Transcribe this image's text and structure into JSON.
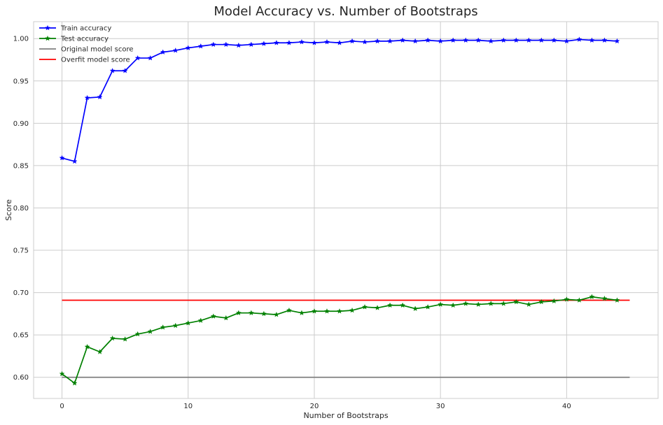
{
  "chart_data": {
    "type": "line",
    "title": "Model Accuracy vs. Number of Bootstraps",
    "xlabel": "Number of Bootstraps",
    "ylabel": "Score",
    "xlim": [
      -2.25,
      47.25
    ],
    "ylim": [
      0.575,
      1.02
    ],
    "xticks": [
      0,
      10,
      20,
      30,
      40
    ],
    "yticks": [
      0.6,
      0.65,
      0.7,
      0.75,
      0.8,
      0.85,
      0.9,
      0.95,
      1.0
    ],
    "ytick_labels": [
      "0.60",
      "0.65",
      "0.70",
      "0.75",
      "0.80",
      "0.85",
      "0.90",
      "0.95",
      "1.00"
    ],
    "grid": true,
    "legend_position": "top-left",
    "series": [
      {
        "name": "Train accuracy",
        "color": "#0000ff",
        "marker": "star",
        "x": [
          0,
          1,
          2,
          3,
          4,
          5,
          6,
          7,
          8,
          9,
          10,
          11,
          12,
          13,
          14,
          15,
          16,
          17,
          18,
          19,
          20,
          21,
          22,
          23,
          24,
          25,
          26,
          27,
          28,
          29,
          30,
          31,
          32,
          33,
          34,
          35,
          36,
          37,
          38,
          39,
          40,
          41,
          42,
          43,
          44
        ],
        "values": [
          0.859,
          0.855,
          0.93,
          0.931,
          0.962,
          0.962,
          0.977,
          0.977,
          0.984,
          0.986,
          0.989,
          0.991,
          0.993,
          0.993,
          0.992,
          0.993,
          0.994,
          0.995,
          0.995,
          0.996,
          0.995,
          0.996,
          0.995,
          0.997,
          0.996,
          0.997,
          0.997,
          0.998,
          0.997,
          0.998,
          0.997,
          0.998,
          0.998,
          0.998,
          0.997,
          0.998,
          0.998,
          0.998,
          0.998,
          0.998,
          0.997,
          0.999,
          0.998,
          0.998,
          0.997
        ]
      },
      {
        "name": "Test accuracy",
        "color": "#008000",
        "marker": "star",
        "x": [
          0,
          1,
          2,
          3,
          4,
          5,
          6,
          7,
          8,
          9,
          10,
          11,
          12,
          13,
          14,
          15,
          16,
          17,
          18,
          19,
          20,
          21,
          22,
          23,
          24,
          25,
          26,
          27,
          28,
          29,
          30,
          31,
          32,
          33,
          34,
          35,
          36,
          37,
          38,
          39,
          40,
          41,
          42,
          43,
          44
        ],
        "values": [
          0.604,
          0.593,
          0.636,
          0.63,
          0.646,
          0.645,
          0.651,
          0.654,
          0.659,
          0.661,
          0.664,
          0.667,
          0.672,
          0.67,
          0.676,
          0.676,
          0.675,
          0.674,
          0.679,
          0.676,
          0.678,
          0.678,
          0.678,
          0.679,
          0.683,
          0.682,
          0.685,
          0.685,
          0.681,
          0.683,
          0.686,
          0.685,
          0.687,
          0.686,
          0.687,
          0.687,
          0.689,
          0.686,
          0.689,
          0.69,
          0.692,
          0.691,
          0.695,
          0.693,
          0.691
        ]
      },
      {
        "name": "Original model score",
        "color": "#808080",
        "marker": "none",
        "x": [
          0,
          45
        ],
        "values": [
          0.6,
          0.6
        ]
      },
      {
        "name": "Overfit model score",
        "color": "#ff0000",
        "marker": "none",
        "x": [
          0,
          45
        ],
        "values": [
          0.691,
          0.691
        ]
      }
    ]
  }
}
